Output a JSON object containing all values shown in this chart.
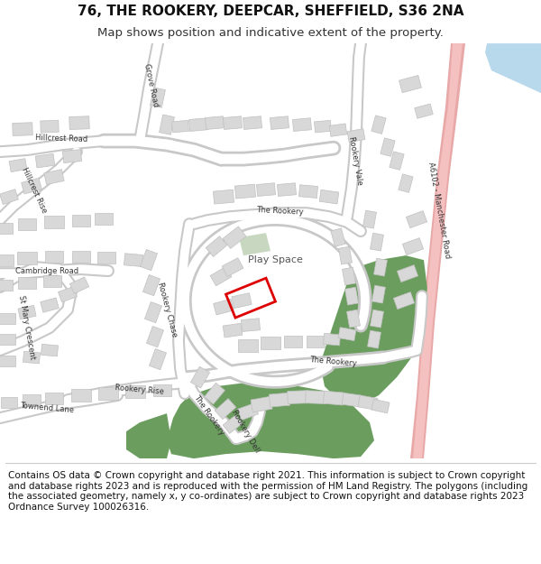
{
  "title": "76, THE ROOKERY, DEEPCAR, SHEFFIELD, S36 2NA",
  "subtitle": "Map shows position and indicative extent of the property.",
  "footer": "Contains OS data © Crown copyright and database right 2021. This information is subject to Crown copyright and database rights 2023 and is reproduced with the permission of HM Land Registry. The polygons (including the associated geometry, namely x, y co-ordinates) are subject to Crown copyright and database rights 2023 Ordnance Survey 100026316.",
  "map_bg": "#ffffff",
  "road_fill": "#ffffff",
  "road_outline": "#c8c8c8",
  "building_fill": "#d8d8d8",
  "building_edge": "#c0c0c0",
  "green_color": "#6b9e5e",
  "green_light": "#c8d8c0",
  "pink_road_fill": "#f5c0c0",
  "pink_road_edge": "#e8a8a8",
  "blue_water": "#b8d8ec",
  "red_box": "#dd0000",
  "title_fs": 11,
  "subtitle_fs": 9.5,
  "footer_fs": 7.5,
  "fig_w": 6.0,
  "fig_h": 6.25
}
